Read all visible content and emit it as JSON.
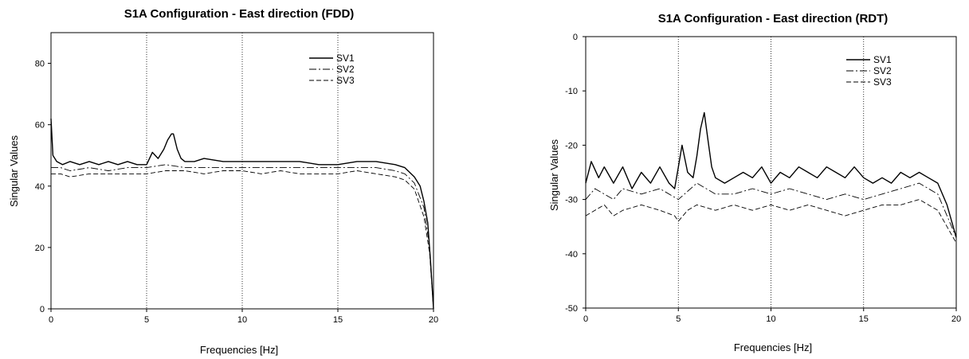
{
  "chart_data": [
    {
      "type": "line",
      "title": "S1A Configuration - East direction (FDD)",
      "xlabel": "Frequencies [Hz]",
      "ylabel": "Singular Values",
      "xlim": [
        0,
        20
      ],
      "ylim": [
        0,
        90
      ],
      "xticks": [
        "0",
        "5",
        "10",
        "15",
        "20"
      ],
      "yticks": [
        "0",
        "20",
        "40",
        "60",
        "80"
      ],
      "vgrid_x": [
        5,
        10,
        15
      ],
      "legend_position": "top-right",
      "series": [
        {
          "name": "SV1",
          "style": "solid",
          "x": [
            0,
            0.1,
            0.3,
            0.6,
            1,
            1.5,
            2,
            2.5,
            3,
            3.5,
            4,
            4.5,
            5,
            5.3,
            5.6,
            5.9,
            6.1,
            6.3,
            6.4,
            6.6,
            6.8,
            7,
            7.5,
            8,
            9,
            10,
            11,
            12,
            13,
            14,
            15,
            16,
            17,
            18,
            18.5,
            19,
            19.3,
            19.5,
            19.7,
            19.85,
            20
          ],
          "y": [
            62,
            50,
            48,
            47,
            48,
            47,
            48,
            47,
            48,
            47,
            48,
            47,
            47,
            51,
            49,
            52,
            55,
            57,
            57,
            52,
            49,
            48,
            48,
            49,
            48,
            48,
            48,
            48,
            48,
            47,
            47,
            48,
            48,
            47,
            46,
            43,
            40,
            35,
            28,
            15,
            0
          ]
        },
        {
          "name": "SV2",
          "style": "dash-dot",
          "x": [
            0,
            0.5,
            1,
            2,
            3,
            4,
            5,
            6,
            7,
            8,
            9,
            10,
            11,
            12,
            13,
            14,
            15,
            16,
            17,
            18,
            18.5,
            19,
            19.5,
            19.8,
            20
          ],
          "y": [
            46,
            46,
            45,
            46,
            45,
            46,
            46,
            47,
            46,
            46,
            46,
            46,
            46,
            46,
            46,
            46,
            46,
            46,
            46,
            45,
            44,
            41,
            33,
            20,
            0
          ]
        },
        {
          "name": "SV3",
          "style": "dashed",
          "x": [
            0,
            0.5,
            1,
            2,
            3,
            4,
            5,
            6,
            7,
            8,
            9,
            10,
            11,
            12,
            13,
            14,
            15,
            16,
            17,
            18,
            18.5,
            19,
            19.5,
            19.8,
            20
          ],
          "y": [
            44,
            44,
            43,
            44,
            44,
            44,
            44,
            45,
            45,
            44,
            45,
            45,
            44,
            45,
            44,
            44,
            44,
            45,
            44,
            43,
            42,
            39,
            30,
            18,
            0
          ]
        }
      ]
    },
    {
      "type": "line",
      "title": "S1A Configuration - East direction (RDT)",
      "xlabel": "Frequencies [Hz]",
      "ylabel": "Singular Values",
      "xlim": [
        0,
        20
      ],
      "ylim": [
        -50,
        0
      ],
      "xticks": [
        "0",
        "5",
        "10",
        "15",
        "20"
      ],
      "yticks": [
        "-50",
        "-40",
        "-30",
        "-20",
        "-10",
        "0"
      ],
      "vgrid_x": [
        5,
        10,
        15
      ],
      "legend_position": "top-right",
      "series": [
        {
          "name": "SV1",
          "style": "solid",
          "x": [
            0,
            0.3,
            0.7,
            1,
            1.5,
            2,
            2.5,
            3,
            3.5,
            4,
            4.5,
            4.8,
            5,
            5.2,
            5.5,
            5.8,
            6,
            6.2,
            6.4,
            6.6,
            6.8,
            7,
            7.5,
            8,
            8.5,
            9,
            9.5,
            10,
            10.5,
            11,
            11.5,
            12,
            12.5,
            13,
            13.5,
            14,
            14.5,
            15,
            15.5,
            16,
            16.5,
            17,
            17.5,
            18,
            18.5,
            19,
            19.5,
            20
          ],
          "y": [
            -27,
            -23,
            -26,
            -24,
            -27,
            -24,
            -28,
            -25,
            -27,
            -24,
            -27,
            -28,
            -24,
            -20,
            -25,
            -26,
            -22,
            -17,
            -14,
            -19,
            -24,
            -26,
            -27,
            -26,
            -25,
            -26,
            -24,
            -27,
            -25,
            -26,
            -24,
            -25,
            -26,
            -24,
            -25,
            -26,
            -24,
            -26,
            -27,
            -26,
            -27,
            -25,
            -26,
            -25,
            -26,
            -27,
            -31,
            -37
          ]
        },
        {
          "name": "SV2",
          "style": "dash-dot",
          "x": [
            0,
            0.5,
            1,
            1.5,
            2,
            3,
            4,
            5,
            6,
            7,
            8,
            9,
            10,
            11,
            12,
            13,
            14,
            15,
            16,
            17,
            18,
            18.5,
            19,
            19.5,
            20
          ],
          "y": [
            -30,
            -28,
            -29,
            -30,
            -28,
            -29,
            -28,
            -30,
            -27,
            -29,
            -29,
            -28,
            -29,
            -28,
            -29,
            -30,
            -29,
            -30,
            -29,
            -28,
            -27,
            -28,
            -29,
            -33,
            -37
          ]
        },
        {
          "name": "SV3",
          "style": "dashed",
          "x": [
            0,
            0.5,
            1,
            1.5,
            2,
            3,
            4,
            4.8,
            5,
            5.5,
            6,
            7,
            8,
            9,
            10,
            11,
            12,
            13,
            14,
            15,
            16,
            17,
            18,
            18.5,
            19,
            19.5,
            20
          ],
          "y": [
            -33,
            -32,
            -31,
            -33,
            -32,
            -31,
            -32,
            -33,
            -34,
            -32,
            -31,
            -32,
            -31,
            -32,
            -31,
            -32,
            -31,
            -32,
            -33,
            -32,
            -31,
            -31,
            -30,
            -31,
            -32,
            -35,
            -38
          ]
        }
      ]
    }
  ]
}
